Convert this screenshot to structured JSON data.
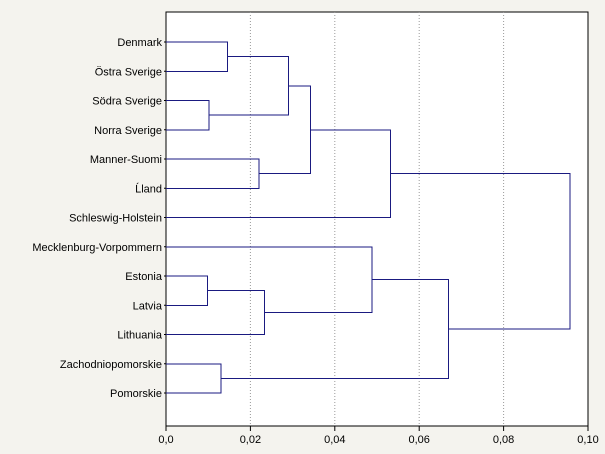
{
  "chart_data": {
    "type": "dendrogram",
    "orientation": "horizontal",
    "title": "",
    "xlabel": "",
    "ylabel": "",
    "xlim": [
      0.0,
      0.1
    ],
    "grid": "vertical-dotted",
    "x_ticks": [
      {
        "value": 0.0,
        "label": "0,0"
      },
      {
        "value": 0.02,
        "label": "0,02"
      },
      {
        "value": 0.04,
        "label": "0,04"
      },
      {
        "value": 0.06,
        "label": "0,06"
      },
      {
        "value": 0.08,
        "label": "0,08"
      },
      {
        "value": 0.1,
        "label": "0,10"
      }
    ],
    "leaves": [
      "Denmark",
      "Östra Sverige",
      "Södra Sverige",
      "Norra Sverige",
      "Manner-Suomi",
      "Ĺland",
      "Schleswig-Holstein",
      "Mecklenburg-Vorpommern",
      "Estonia",
      "Latvia",
      "Lithuania",
      "Zachodniopomorskie",
      "Pomorskie"
    ],
    "merges": [
      {
        "id": "n1",
        "left": "Denmark",
        "right": "Östra Sverige",
        "height": 0.0146
      },
      {
        "id": "n2",
        "left": "Södra Sverige",
        "right": "Norra Sverige",
        "height": 0.0102
      },
      {
        "id": "n3",
        "left": "n1",
        "right": "n2",
        "height": 0.029
      },
      {
        "id": "n4",
        "left": "Manner-Suomi",
        "right": "Ĺland",
        "height": 0.022
      },
      {
        "id": "n5",
        "left": "n3",
        "right": "n4",
        "height": 0.0342
      },
      {
        "id": "n6",
        "left": "n5",
        "right": "Schleswig-Holstein",
        "height": 0.0532
      },
      {
        "id": "n7",
        "left": "Estonia",
        "right": "Latvia",
        "height": 0.0098
      },
      {
        "id": "n8",
        "left": "n7",
        "right": "Lithuania",
        "height": 0.0234
      },
      {
        "id": "n9",
        "left": "Mecklenburg-Vorpommern",
        "right": "n8",
        "height": 0.0488
      },
      {
        "id": "n10",
        "left": "Zachodniopomorskie",
        "right": "Pomorskie",
        "height": 0.013
      },
      {
        "id": "n11",
        "left": "n9",
        "right": "n10",
        "height": 0.067
      },
      {
        "id": "n12",
        "left": "n6",
        "right": "n11",
        "height": 0.0957
      }
    ],
    "colors": {
      "background": "#f4f3ee",
      "plot_background": "#ffffff",
      "branch": "#1a1a80",
      "grid": "#9a9a9a",
      "axis": "#000000"
    }
  }
}
